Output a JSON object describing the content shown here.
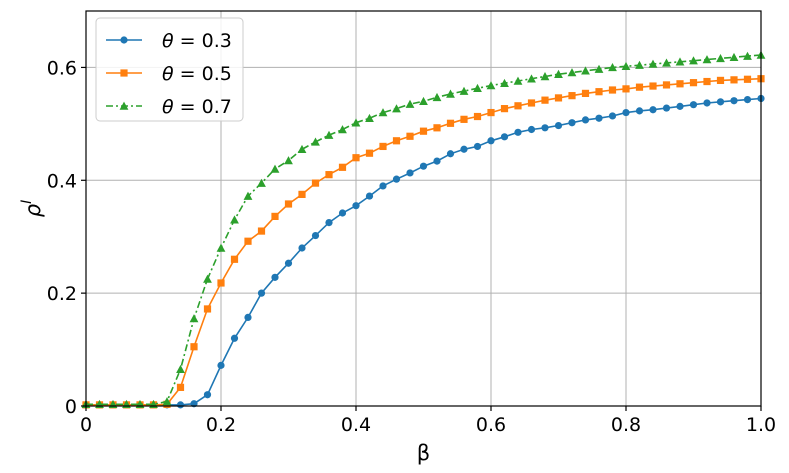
{
  "chart_data": {
    "type": "line",
    "title": "",
    "xlabel": "β",
    "ylabel": "ρ",
    "ylabel_superscript": "I",
    "xlim": [
      0,
      1.0
    ],
    "ylim": [
      0,
      0.7
    ],
    "xticks": [
      0,
      0.2,
      0.4,
      0.6,
      0.8,
      1.0
    ],
    "xtick_labels": [
      "0",
      "0.2",
      "0.4",
      "0.6",
      "0.8",
      "1.0"
    ],
    "yticks": [
      0,
      0.2,
      0.4,
      0.6
    ],
    "ytick_labels": [
      "0",
      "0.2",
      "0.4",
      "0.6"
    ],
    "grid": true,
    "legend_position": "top-left",
    "x": [
      0.0,
      0.02,
      0.04,
      0.06,
      0.08,
      0.1,
      0.12,
      0.14,
      0.16,
      0.18,
      0.2,
      0.22,
      0.24,
      0.26,
      0.28,
      0.3,
      0.32,
      0.34,
      0.36,
      0.38,
      0.4,
      0.42,
      0.44,
      0.46,
      0.48,
      0.5,
      0.52,
      0.54,
      0.56,
      0.58,
      0.6,
      0.62,
      0.64,
      0.66,
      0.68,
      0.7,
      0.72,
      0.74,
      0.76,
      0.78,
      0.8,
      0.82,
      0.84,
      0.86,
      0.88,
      0.9,
      0.92,
      0.94,
      0.96,
      0.98,
      1.0
    ],
    "series": [
      {
        "name": "θ = 0.3",
        "legend_symbol": "θ",
        "legend_value": " = 0.3",
        "color": "#1f77b4",
        "marker": "circle",
        "dash": "solid",
        "values": [
          0.002,
          0.002,
          0.002,
          0.002,
          0.002,
          0.002,
          0.002,
          0.002,
          0.004,
          0.02,
          0.072,
          0.12,
          0.157,
          0.2,
          0.228,
          0.253,
          0.28,
          0.302,
          0.325,
          0.342,
          0.355,
          0.372,
          0.39,
          0.402,
          0.413,
          0.425,
          0.434,
          0.447,
          0.455,
          0.46,
          0.47,
          0.477,
          0.485,
          0.49,
          0.493,
          0.497,
          0.502,
          0.507,
          0.51,
          0.514,
          0.52,
          0.523,
          0.525,
          0.528,
          0.531,
          0.534,
          0.537,
          0.539,
          0.541,
          0.543,
          0.545
        ]
      },
      {
        "name": "θ = 0.5",
        "legend_symbol": "θ",
        "legend_value": " = 0.5",
        "color": "#ff7f0e",
        "marker": "square",
        "dash": "solid",
        "values": [
          0.002,
          0.002,
          0.002,
          0.002,
          0.002,
          0.002,
          0.003,
          0.033,
          0.105,
          0.172,
          0.218,
          0.26,
          0.292,
          0.31,
          0.336,
          0.358,
          0.375,
          0.395,
          0.41,
          0.423,
          0.44,
          0.448,
          0.46,
          0.47,
          0.478,
          0.487,
          0.493,
          0.501,
          0.508,
          0.513,
          0.52,
          0.527,
          0.532,
          0.537,
          0.542,
          0.546,
          0.55,
          0.554,
          0.557,
          0.56,
          0.562,
          0.565,
          0.567,
          0.569,
          0.571,
          0.573,
          0.575,
          0.577,
          0.578,
          0.579,
          0.58
        ]
      },
      {
        "name": "θ = 0.7",
        "legend_symbol": "θ",
        "legend_value": " = 0.7",
        "color": "#2ca02c",
        "marker": "triangle",
        "dash": "dashdot",
        "values": [
          0.003,
          0.003,
          0.003,
          0.003,
          0.003,
          0.003,
          0.008,
          0.065,
          0.155,
          0.225,
          0.28,
          0.33,
          0.372,
          0.395,
          0.42,
          0.435,
          0.455,
          0.468,
          0.48,
          0.49,
          0.502,
          0.51,
          0.52,
          0.527,
          0.535,
          0.54,
          0.547,
          0.553,
          0.558,
          0.563,
          0.568,
          0.572,
          0.576,
          0.58,
          0.584,
          0.588,
          0.591,
          0.594,
          0.597,
          0.6,
          0.602,
          0.604,
          0.606,
          0.608,
          0.61,
          0.612,
          0.614,
          0.616,
          0.618,
          0.62,
          0.622
        ]
      }
    ]
  }
}
